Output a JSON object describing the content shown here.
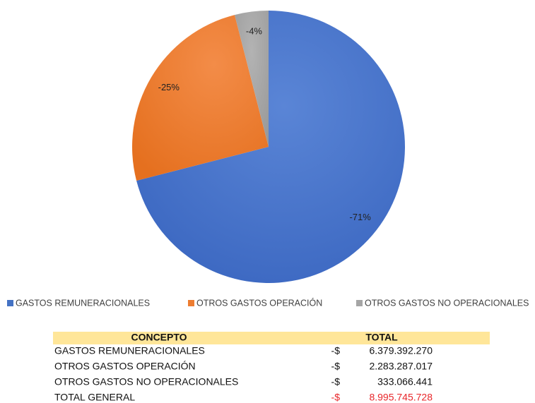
{
  "chart_data": {
    "type": "pie",
    "categories": [
      "GASTOS REMUNERACIONALES",
      "OTROS GASTOS OPERACIÓN",
      "OTROS GASTOS NO OPERACIONALES"
    ],
    "values": [
      -71,
      -25,
      -4
    ],
    "value_labels": [
      "-71%",
      "-25%",
      "-4%"
    ],
    "colors": [
      "#4472c4",
      "#ed7d31",
      "#a5a5a5"
    ],
    "legend": "bottom"
  },
  "table": {
    "header": [
      "CONCEPTO",
      "TOTAL"
    ],
    "rows": [
      [
        "GASTOS REMUNERACIONALES",
        "-$",
        "6.379.392.270"
      ],
      [
        "OTROS GASTOS OPERACIÓN",
        "-$",
        "2.283.287.017"
      ],
      [
        "OTROS GASTOS NO OPERACIONALES",
        "-$",
        "333.066.441"
      ],
      [
        "TOTAL GENERAL",
        "-$",
        "8.995.745.728"
      ]
    ]
  }
}
